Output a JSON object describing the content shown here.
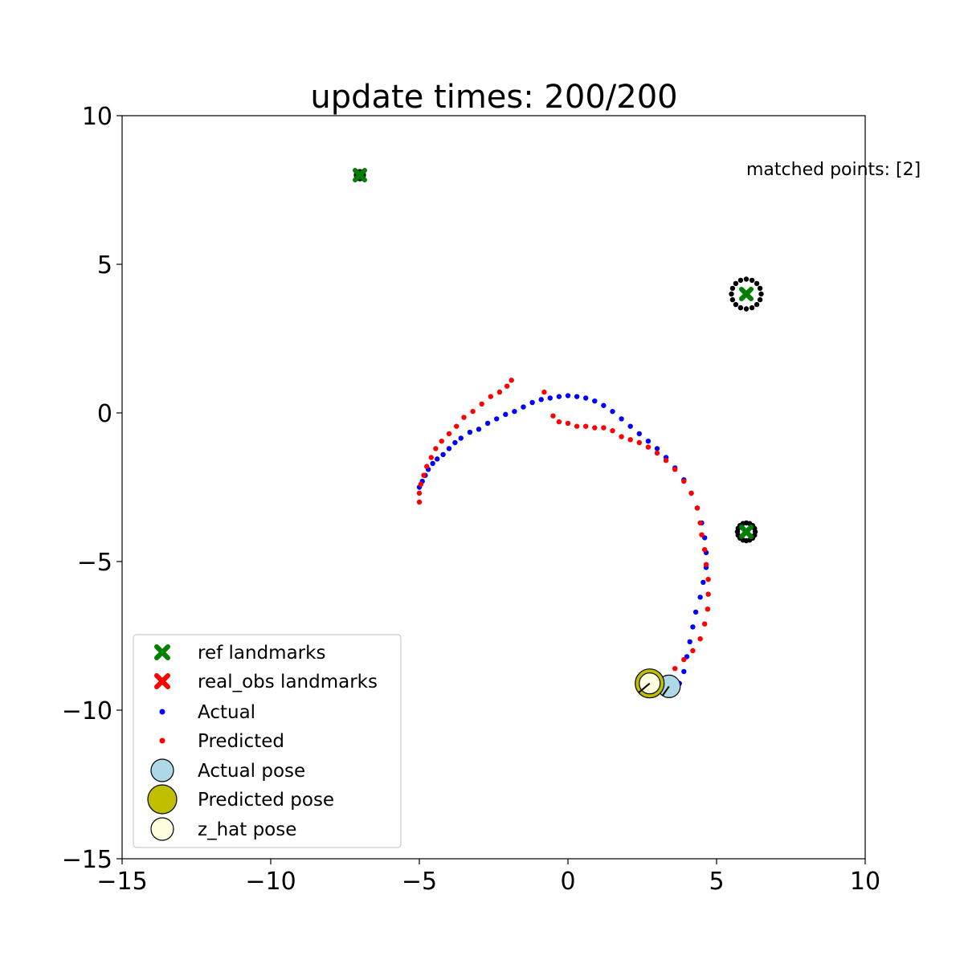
{
  "chart_data": {
    "type": "scatter",
    "title": "update times: 200/200",
    "xlabel": "",
    "ylabel": "",
    "xlim": [
      -15,
      10
    ],
    "ylim": [
      -15,
      10
    ],
    "xticks": [
      -15,
      -10,
      -5,
      0,
      5,
      10
    ],
    "xtick_labels": [
      "−15",
      "−10",
      "−5",
      "0",
      "5",
      "10"
    ],
    "yticks": [
      -15,
      -10,
      -5,
      0,
      5,
      10
    ],
    "ytick_labels": [
      "−15",
      "−10",
      "−5",
      "0",
      "5",
      "10"
    ],
    "grid": false,
    "annotation": {
      "text": "matched points: [2]",
      "x": 6,
      "y": 8
    },
    "legend_position": "lower-left",
    "legend": [
      {
        "label": "ref landmarks",
        "marker": "x",
        "color": "#008000"
      },
      {
        "label": "real_obs landmarks",
        "marker": "x",
        "color": "#ff0000"
      },
      {
        "label": "Actual",
        "marker": "dot",
        "color": "#0000ff"
      },
      {
        "label": "Predicted",
        "marker": "dot",
        "color": "#ff0000"
      },
      {
        "label": "Actual pose",
        "marker": "circle",
        "color": "#add8e6"
      },
      {
        "label": "Predicted pose",
        "marker": "circle",
        "color": "#bfbf00"
      },
      {
        "label": "z_hat pose",
        "marker": "circle",
        "color": "#ffffe0"
      }
    ],
    "ref_landmarks": [
      [
        -7,
        8
      ],
      [
        6,
        4
      ],
      [
        6,
        -4
      ]
    ],
    "observation_circles": [
      {
        "center": [
          -7,
          8
        ],
        "radius": 0.12
      },
      {
        "center": [
          6,
          4
        ],
        "radius": 0.5
      },
      {
        "center": [
          6,
          -4
        ],
        "radius": 0.3
      }
    ],
    "actual_path": [
      [
        -5.0,
        -2.5
      ],
      [
        -4.9,
        -2.3
      ],
      [
        -4.8,
        -2.1
      ],
      [
        -4.7,
        -1.9
      ],
      [
        -4.55,
        -1.7
      ],
      [
        -4.4,
        -1.55
      ],
      [
        -4.2,
        -1.4
      ],
      [
        -4.0,
        -1.2
      ],
      [
        -3.8,
        -1.0
      ],
      [
        -3.6,
        -0.85
      ],
      [
        -3.3,
        -0.65
      ],
      [
        -3.0,
        -0.55
      ],
      [
        -2.7,
        -0.35
      ],
      [
        -2.4,
        -0.2
      ],
      [
        -2.1,
        -0.05
      ],
      [
        -1.8,
        0.05
      ],
      [
        -1.5,
        0.2
      ],
      [
        -1.2,
        0.35
      ],
      [
        -0.9,
        0.45
      ],
      [
        -0.6,
        0.5
      ],
      [
        -0.3,
        0.55
      ],
      [
        0.0,
        0.58
      ],
      [
        0.3,
        0.55
      ],
      [
        0.6,
        0.5
      ],
      [
        0.9,
        0.4
      ],
      [
        1.2,
        0.25
      ],
      [
        1.5,
        0.05
      ],
      [
        1.8,
        -0.2
      ],
      [
        2.1,
        -0.45
      ],
      [
        2.4,
        -0.7
      ],
      [
        2.7,
        -0.95
      ],
      [
        3.0,
        -1.2
      ],
      [
        3.3,
        -1.5
      ],
      [
        3.6,
        -1.85
      ],
      [
        3.9,
        -2.25
      ],
      [
        4.15,
        -2.7
      ],
      [
        4.35,
        -3.2
      ],
      [
        4.5,
        -3.7
      ],
      [
        4.6,
        -4.2
      ],
      [
        4.65,
        -4.7
      ],
      [
        4.65,
        -5.2
      ],
      [
        4.55,
        -5.7
      ],
      [
        4.45,
        -6.2
      ],
      [
        4.3,
        -6.7
      ],
      [
        4.2,
        -7.2
      ],
      [
        4.1,
        -7.7
      ],
      [
        4.0,
        -8.2
      ],
      [
        3.9,
        -8.7
      ],
      [
        3.75,
        -9.1
      ]
    ],
    "predicted_path": [
      [
        -5.0,
        -3.0
      ],
      [
        -5.0,
        -2.7
      ],
      [
        -4.95,
        -2.4
      ],
      [
        -4.85,
        -2.1
      ],
      [
        -4.75,
        -1.8
      ],
      [
        -4.6,
        -1.5
      ],
      [
        -4.45,
        -1.2
      ],
      [
        -4.25,
        -0.95
      ],
      [
        -4.0,
        -0.7
      ],
      [
        -3.75,
        -0.45
      ],
      [
        -3.5,
        -0.15
      ],
      [
        -3.2,
        0.05
      ],
      [
        -2.9,
        0.3
      ],
      [
        -2.6,
        0.55
      ],
      [
        -2.3,
        0.7
      ],
      [
        -2.05,
        0.9
      ],
      [
        -1.9,
        1.1
      ],
      [
        -0.8,
        0.7
      ],
      [
        -0.5,
        -0.1
      ],
      [
        -0.3,
        -0.3
      ],
      [
        0.0,
        -0.35
      ],
      [
        0.3,
        -0.45
      ],
      [
        0.6,
        -0.45
      ],
      [
        0.9,
        -0.5
      ],
      [
        1.2,
        -0.5
      ],
      [
        1.5,
        -0.6
      ],
      [
        1.8,
        -0.8
      ],
      [
        2.1,
        -0.9
      ],
      [
        2.4,
        -1.0
      ],
      [
        2.7,
        -1.15
      ],
      [
        3.0,
        -1.35
      ],
      [
        3.3,
        -1.6
      ],
      [
        3.6,
        -1.9
      ],
      [
        3.9,
        -2.3
      ],
      [
        4.15,
        -2.7
      ],
      [
        4.35,
        -3.2
      ],
      [
        4.45,
        -3.7
      ],
      [
        4.5,
        -4.1
      ],
      [
        4.6,
        -4.6
      ],
      [
        4.65,
        -5.1
      ],
      [
        4.72,
        -5.6
      ],
      [
        4.72,
        -6.1
      ],
      [
        4.7,
        -6.6
      ],
      [
        4.6,
        -7.1
      ],
      [
        4.45,
        -7.6
      ],
      [
        4.2,
        -8.0
      ],
      [
        3.9,
        -8.3
      ],
      [
        3.6,
        -8.6
      ],
      [
        3.3,
        -8.9
      ],
      [
        3.0,
        -9.05
      ]
    ],
    "actual_pose": {
      "x": 3.4,
      "y": -9.2,
      "heading_deg": 235
    },
    "predicted_pose": {
      "x": 2.75,
      "y": -9.1,
      "heading_deg": 220
    },
    "z_hat_pose": {
      "x": 2.75,
      "y": -9.1,
      "heading_deg": 220
    }
  }
}
